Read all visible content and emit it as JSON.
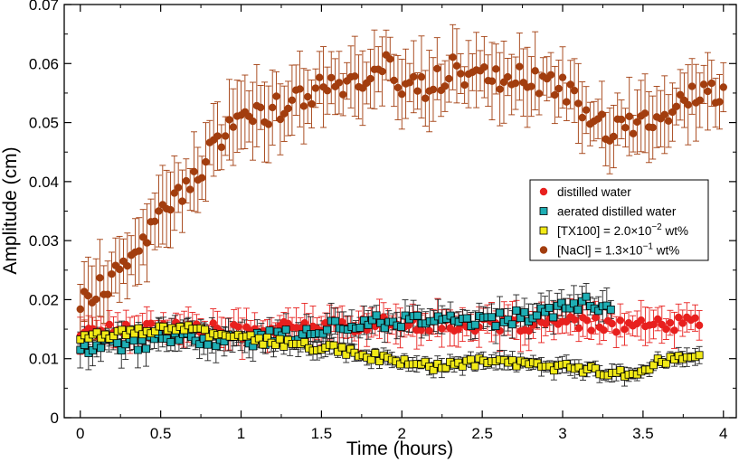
{
  "chart_data": {
    "type": "scatter",
    "title": "",
    "xlabel": "Time (hours)",
    "ylabel": "Amplitude (cm)",
    "xlim": [
      -0.1,
      4.08
    ],
    "ylim": [
      0,
      0.07
    ],
    "xticks": [
      0,
      0.5,
      1,
      1.5,
      2,
      2.5,
      3,
      3.5,
      4
    ],
    "xtick_labels": [
      "0",
      "0.5",
      "1",
      "1.5",
      "2",
      "2.5",
      "3",
      "3.5",
      "4"
    ],
    "yticks": [
      0,
      0.01,
      0.02,
      0.03,
      0.04,
      0.05,
      0.06,
      0.07
    ],
    "ytick_labels": [
      "0",
      "0.01",
      "0.02",
      "0.03",
      "0.04",
      "0.05",
      "0.06",
      "0.07"
    ],
    "legend_position": "right",
    "series": [
      {
        "name": "distilled water",
        "label_parts": [
          "distilled water"
        ],
        "color": "#e8201e",
        "marker": "circle",
        "x_start": 0.0,
        "x_end": 3.85,
        "n": 150,
        "anchors": [
          [
            0.0,
            0.0145
          ],
          [
            0.5,
            0.0155
          ],
          [
            1.0,
            0.0145
          ],
          [
            1.5,
            0.0155
          ],
          [
            2.0,
            0.016
          ],
          [
            2.5,
            0.0155
          ],
          [
            3.0,
            0.016
          ],
          [
            3.5,
            0.0155
          ],
          [
            3.85,
            0.016
          ]
        ],
        "err": 0.0025,
        "jitter": 0.0012
      },
      {
        "name": "aerated distilled water",
        "label_parts": [
          "aerated distilled water"
        ],
        "color": "#1eaeb4",
        "marker": "square",
        "x_start": 0.0,
        "x_end": 3.3,
        "n": 130,
        "anchors": [
          [
            0.0,
            0.012
          ],
          [
            0.3,
            0.0125
          ],
          [
            0.7,
            0.0135
          ],
          [
            1.0,
            0.013
          ],
          [
            1.3,
            0.014
          ],
          [
            1.7,
            0.016
          ],
          [
            2.0,
            0.0165
          ],
          [
            2.5,
            0.0165
          ],
          [
            2.9,
            0.0175
          ],
          [
            3.05,
            0.0195
          ],
          [
            3.3,
            0.019
          ]
        ],
        "err": 0.0022,
        "jitter": 0.0012
      },
      {
        "name": "[TX100] = 2.0×10^-2 wt%",
        "label_parts": [
          "[TX100] = 2.0×10",
          "−2",
          " wt%"
        ],
        "color": "#f2ea16",
        "marker": "square",
        "x_start": 0.0,
        "x_end": 3.85,
        "n": 150,
        "anchors": [
          [
            0.0,
            0.0135
          ],
          [
            0.3,
            0.0145
          ],
          [
            0.6,
            0.0155
          ],
          [
            0.75,
            0.0145
          ],
          [
            1.0,
            0.0135
          ],
          [
            1.3,
            0.0125
          ],
          [
            1.6,
            0.0115
          ],
          [
            1.9,
            0.01
          ],
          [
            2.2,
            0.0085
          ],
          [
            2.5,
            0.0095
          ],
          [
            2.8,
            0.009
          ],
          [
            3.0,
            0.0085
          ],
          [
            3.2,
            0.008
          ],
          [
            3.45,
            0.0075
          ],
          [
            3.6,
            0.0095
          ],
          [
            3.85,
            0.0105
          ]
        ],
        "err": 0.0012,
        "jitter": 0.0007
      },
      {
        "name": "[NaCl] = 1.3×10^-1 wt%",
        "label_parts": [
          "[NaCl] = 1.3×10",
          "−1",
          " wt%"
        ],
        "color": "#a23d0e",
        "marker": "circle",
        "x_start": 0.0,
        "x_end": 4.0,
        "n": 165,
        "anchors": [
          [
            0.0,
            0.019
          ],
          [
            0.1,
            0.021
          ],
          [
            0.2,
            0.0235
          ],
          [
            0.3,
            0.0255
          ],
          [
            0.4,
            0.0305
          ],
          [
            0.5,
            0.035
          ],
          [
            0.6,
            0.038
          ],
          [
            0.7,
            0.04
          ],
          [
            0.8,
            0.045
          ],
          [
            0.9,
            0.0485
          ],
          [
            1.0,
            0.0505
          ],
          [
            1.2,
            0.052
          ],
          [
            1.3,
            0.0535
          ],
          [
            1.4,
            0.055
          ],
          [
            1.5,
            0.0555
          ],
          [
            1.6,
            0.0555
          ],
          [
            1.8,
            0.058
          ],
          [
            1.9,
            0.061
          ],
          [
            2.0,
            0.0555
          ],
          [
            2.2,
            0.0565
          ],
          [
            2.3,
            0.059
          ],
          [
            2.5,
            0.0575
          ],
          [
            2.7,
            0.058
          ],
          [
            2.9,
            0.056
          ],
          [
            3.0,
            0.056
          ],
          [
            3.1,
            0.0525
          ],
          [
            3.2,
            0.0505
          ],
          [
            3.3,
            0.0485
          ],
          [
            3.5,
            0.0505
          ],
          [
            3.6,
            0.0495
          ],
          [
            3.7,
            0.0525
          ],
          [
            3.8,
            0.0545
          ],
          [
            3.9,
            0.0555
          ],
          [
            4.0,
            0.0555
          ]
        ],
        "err": 0.005,
        "jitter": 0.0022
      }
    ]
  }
}
